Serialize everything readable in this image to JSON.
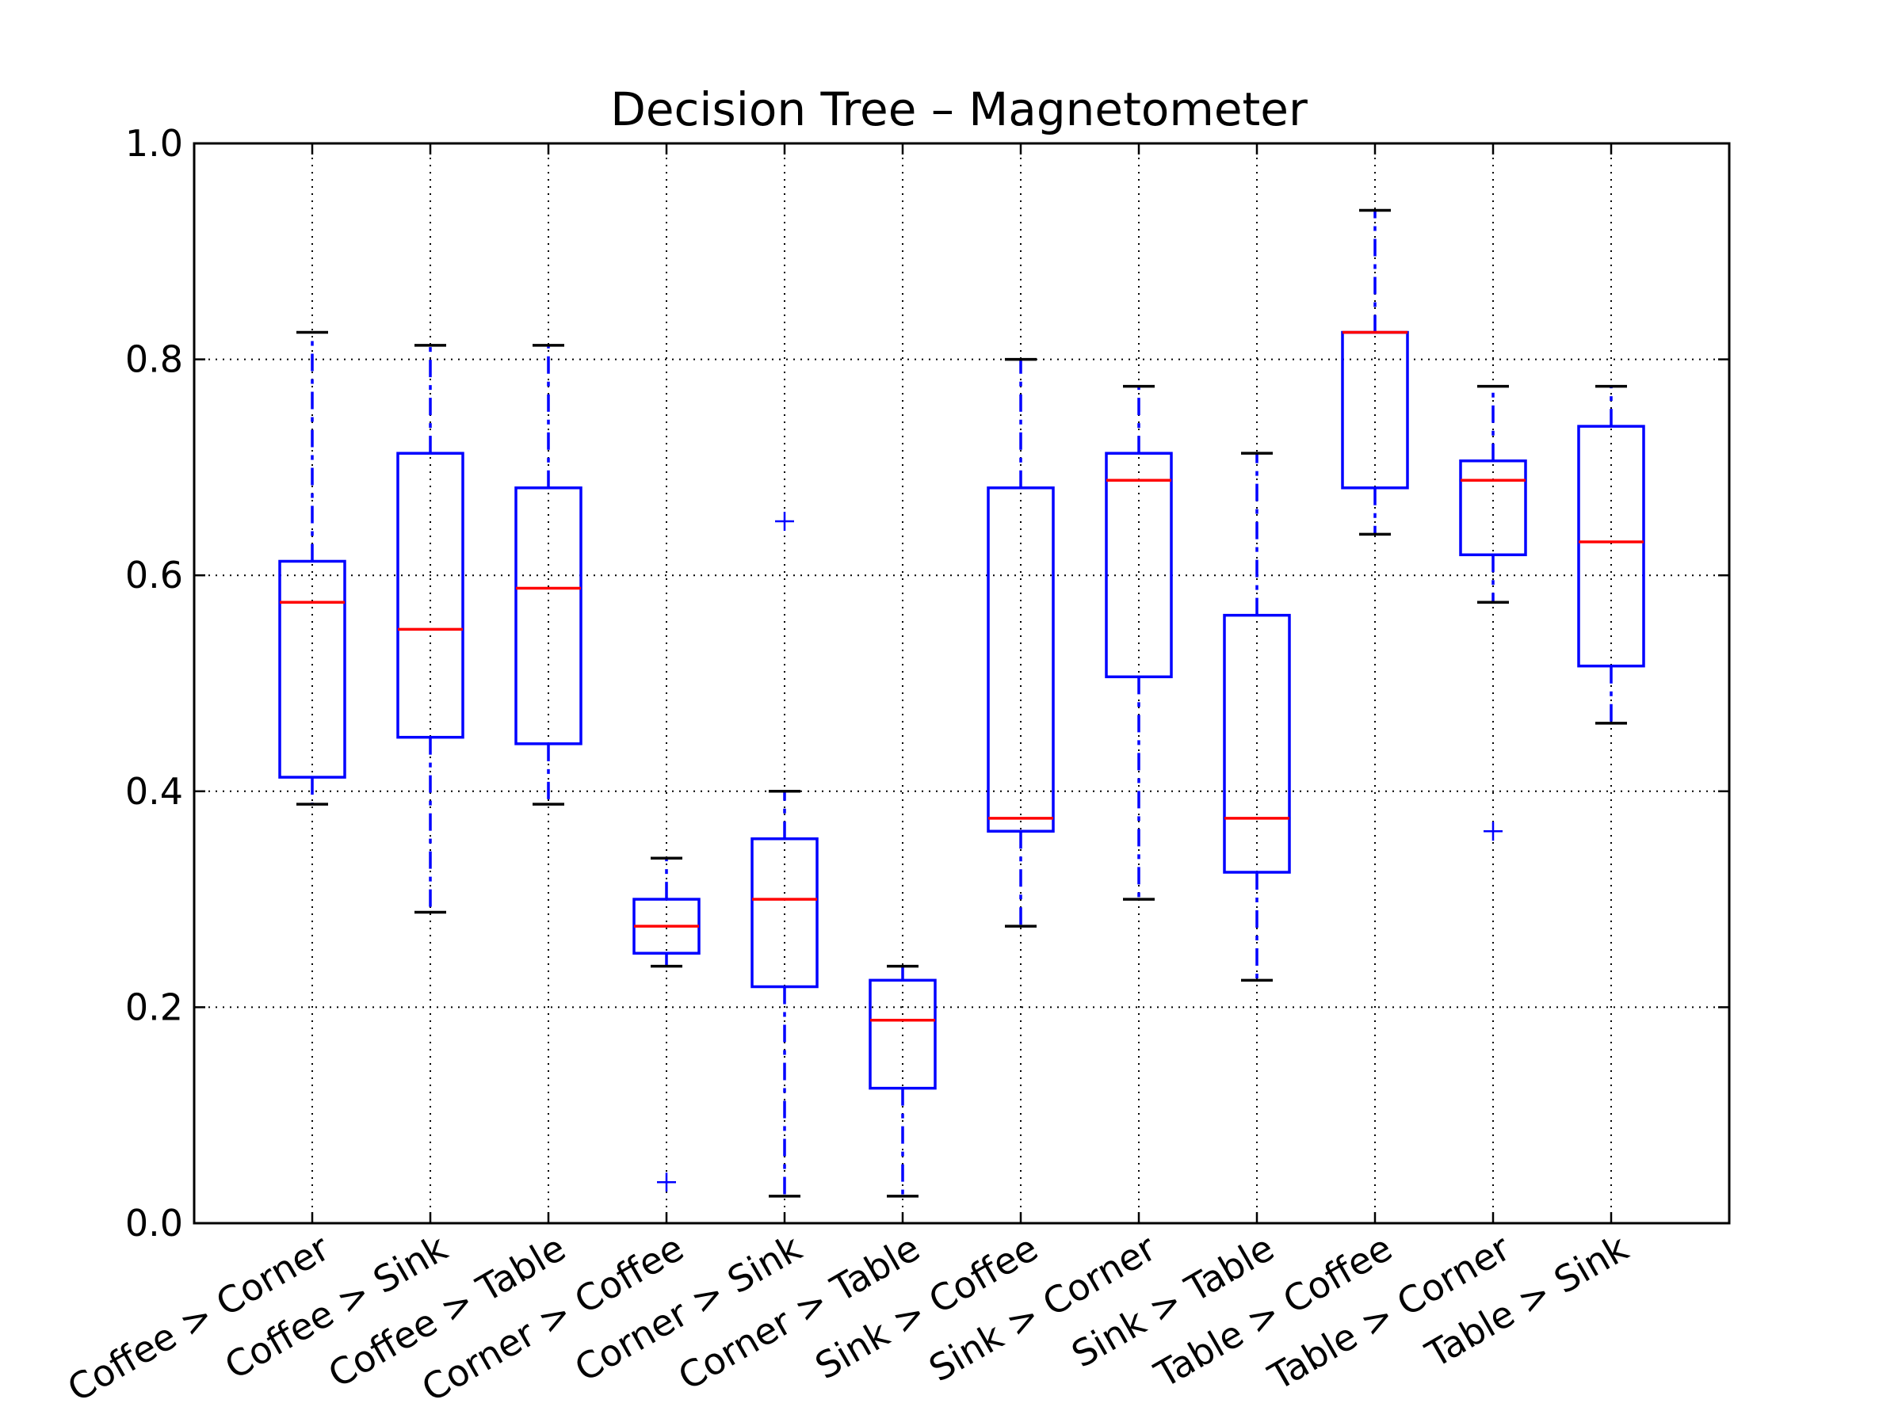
{
  "chart_data": {
    "type": "box",
    "title": "Decision Tree – Magnetometer",
    "xlabel": "",
    "ylabel": "",
    "ylim": [
      0.0,
      1.0
    ],
    "yticks": [
      "0.0",
      "0.2",
      "0.4",
      "0.6",
      "0.8",
      "1.0"
    ],
    "ytick_values": [
      0.0,
      0.2,
      0.4,
      0.6,
      0.8,
      1.0
    ],
    "grid": true,
    "colors": {
      "box": "#0000ff",
      "median": "#ff0000",
      "cap": "#000000",
      "flier": "#0000ff"
    },
    "categories": [
      "Coffee > Corner",
      "Coffee > Sink",
      "Coffee > Table",
      "Corner > Coffee",
      "Corner > Sink",
      "Corner > Table",
      "Sink > Coffee",
      "Sink > Corner",
      "Sink > Table",
      "Table > Coffee",
      "Table > Corner",
      "Table > Sink"
    ],
    "boxes": [
      {
        "whislo": 0.388,
        "q1": 0.413,
        "med": 0.575,
        "q3": 0.613,
        "whishi": 0.825,
        "fliers": []
      },
      {
        "whislo": 0.288,
        "q1": 0.45,
        "med": 0.55,
        "q3": 0.713,
        "whishi": 0.813,
        "fliers": []
      },
      {
        "whislo": 0.388,
        "q1": 0.444,
        "med": 0.588,
        "q3": 0.681,
        "whishi": 0.813,
        "fliers": []
      },
      {
        "whislo": 0.238,
        "q1": 0.25,
        "med": 0.275,
        "q3": 0.3,
        "whishi": 0.338,
        "fliers": [
          0.038
        ]
      },
      {
        "whislo": 0.025,
        "q1": 0.219,
        "med": 0.3,
        "q3": 0.356,
        "whishi": 0.4,
        "fliers": [
          0.65
        ]
      },
      {
        "whislo": 0.025,
        "q1": 0.125,
        "med": 0.188,
        "q3": 0.225,
        "whishi": 0.238,
        "fliers": []
      },
      {
        "whislo": 0.275,
        "q1": 0.363,
        "med": 0.375,
        "q3": 0.681,
        "whishi": 0.8,
        "fliers": []
      },
      {
        "whislo": 0.3,
        "q1": 0.506,
        "med": 0.688,
        "q3": 0.713,
        "whishi": 0.775,
        "fliers": []
      },
      {
        "whislo": 0.225,
        "q1": 0.325,
        "med": 0.375,
        "q3": 0.563,
        "whishi": 0.713,
        "fliers": []
      },
      {
        "whislo": 0.638,
        "q1": 0.681,
        "med": 0.825,
        "q3": 0.825,
        "whishi": 0.938,
        "fliers": []
      },
      {
        "whislo": 0.575,
        "q1": 0.619,
        "med": 0.688,
        "q3": 0.706,
        "whishi": 0.775,
        "fliers": [
          0.363
        ]
      },
      {
        "whislo": 0.463,
        "q1": 0.516,
        "med": 0.631,
        "q3": 0.738,
        "whishi": 0.775,
        "fliers": []
      }
    ]
  }
}
